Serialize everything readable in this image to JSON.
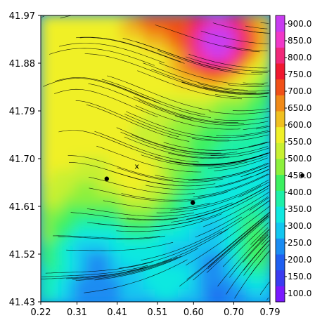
{
  "chart_data": {
    "type": "heatmap",
    "title": "",
    "xlabel": "",
    "ylabel": "",
    "x_ticks": [
      "0.22",
      "0.31",
      "0.41",
      "0.51",
      "0.60",
      "0.70",
      "0.79"
    ],
    "y_ticks": [
      "41.97",
      "41.88",
      "41.79",
      "41.70",
      "41.61",
      "41.52",
      "41.43"
    ],
    "xlim": [
      0.22,
      0.79
    ],
    "ylim": [
      41.43,
      41.97
    ],
    "colorbar": {
      "labels": [
        "100.0",
        "150.0",
        "200.0",
        "250.0",
        "300.0",
        "350.0",
        "400.0",
        "450.0",
        "500.0",
        "550.0",
        "600.0",
        "650.0",
        "700.0",
        "750.0",
        "800.0",
        "850.0",
        "900.0"
      ],
      "colors": [
        "#7a19ff",
        "#3b3bf0",
        "#1f5ff0",
        "#1a8cf2",
        "#12c6f0",
        "#10e8e0",
        "#1ef0a8",
        "#3cf060",
        "#8cf03c",
        "#c8f032",
        "#f0f028",
        "#f0c020",
        "#f08a18",
        "#f05018",
        "#f01830",
        "#f0287a",
        "#f038c8",
        "#c83cf0"
      ],
      "range": [
        75,
        925
      ]
    },
    "markers": [
      {
        "label": "",
        "x": 0.384,
        "y": 41.662,
        "shape": "dot"
      },
      {
        "label": "",
        "x": 0.598,
        "y": 41.617,
        "shape": "dot"
      },
      {
        "label": "x",
        "x": 0.459,
        "y": 41.685,
        "shape": "text"
      }
    ]
  }
}
